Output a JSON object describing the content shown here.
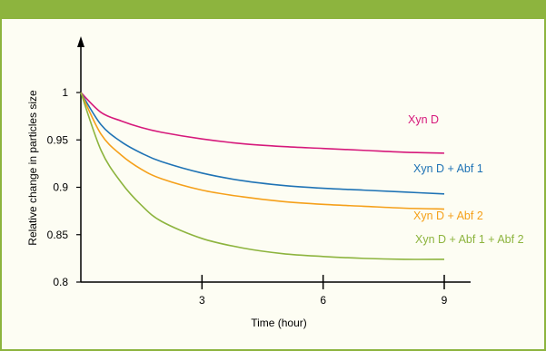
{
  "chart_data": {
    "type": "line",
    "xlabel": "Time (hour)",
    "ylabel": "Relative change in particles size",
    "xlim": [
      0,
      9
    ],
    "ylim": [
      0.8,
      1.02
    ],
    "xticks": [
      3,
      6,
      9
    ],
    "xtick_labels": [
      "3",
      "6",
      "9"
    ],
    "yticks": [
      0.8,
      0.85,
      0.9,
      0.95,
      1
    ],
    "ytick_labels": [
      "0.8",
      "0.85",
      "0.9",
      "0.95",
      "1"
    ],
    "grid": false,
    "legend": "inline labels at line ends",
    "x": [
      0,
      0.5,
      1,
      1.5,
      2,
      3,
      4,
      5,
      6,
      7,
      8,
      9
    ],
    "series": [
      {
        "name": "Xyn D",
        "color": "#d6197b",
        "values": [
          1.0,
          0.979,
          0.97,
          0.963,
          0.958,
          0.951,
          0.946,
          0.943,
          0.941,
          0.939,
          0.937,
          0.936
        ]
      },
      {
        "name": "Xyn D + Abf 1",
        "color": "#1f73b5",
        "values": [
          1.0,
          0.966,
          0.948,
          0.936,
          0.927,
          0.915,
          0.907,
          0.902,
          0.899,
          0.897,
          0.895,
          0.893
        ]
      },
      {
        "name": "Xyn D + Abf 2",
        "color": "#f5a01a",
        "values": [
          1.0,
          0.956,
          0.934,
          0.919,
          0.909,
          0.897,
          0.89,
          0.885,
          0.882,
          0.88,
          0.878,
          0.877
        ]
      },
      {
        "name": "Xyn D + Abf 1 + Abf 2",
        "color": "#8db43e",
        "values": [
          1.0,
          0.939,
          0.905,
          0.881,
          0.864,
          0.846,
          0.836,
          0.83,
          0.827,
          0.825,
          0.824,
          0.824
        ]
      }
    ]
  },
  "colors": {
    "frame": "#8db43e",
    "panel_background": "#fdfdf3",
    "axis": "#000000"
  }
}
